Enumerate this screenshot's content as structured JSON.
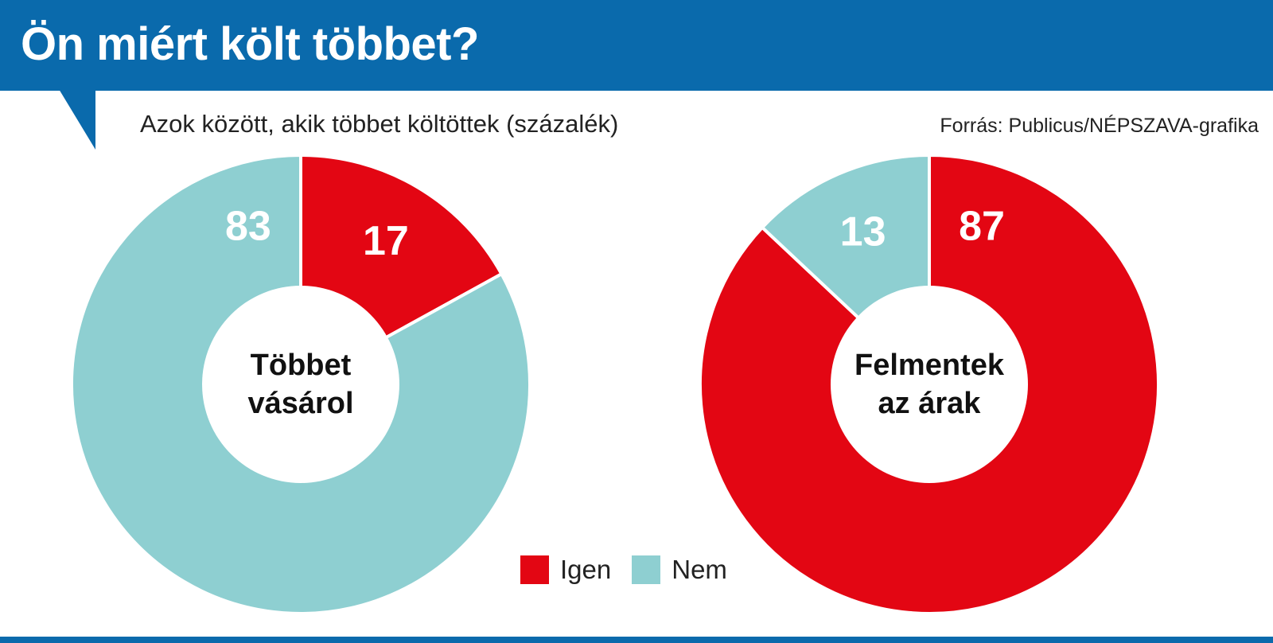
{
  "title": "Ön miért költ többet?",
  "subtitle": "Azok között, akik többet költöttek (százalék)",
  "source": "Forrás: Publicus/NÉPSZAVA-grafika",
  "colors": {
    "header": "#0a6aac",
    "igen": "#e30613",
    "nem": "#8ecfd1"
  },
  "legend": [
    {
      "label": "Igen",
      "color": "#e30613"
    },
    {
      "label": "Nem",
      "color": "#8ecfd1"
    }
  ],
  "chart_data": [
    {
      "type": "pie",
      "center_label": [
        "Többet",
        "vásárol"
      ],
      "slices": [
        {
          "name": "Igen",
          "value": 17
        },
        {
          "name": "Nem",
          "value": 83
        }
      ]
    },
    {
      "type": "pie",
      "center_label": [
        "Felmentek",
        "az árak"
      ],
      "slices": [
        {
          "name": "Igen",
          "value": 87
        },
        {
          "name": "Nem",
          "value": 13
        }
      ]
    }
  ]
}
